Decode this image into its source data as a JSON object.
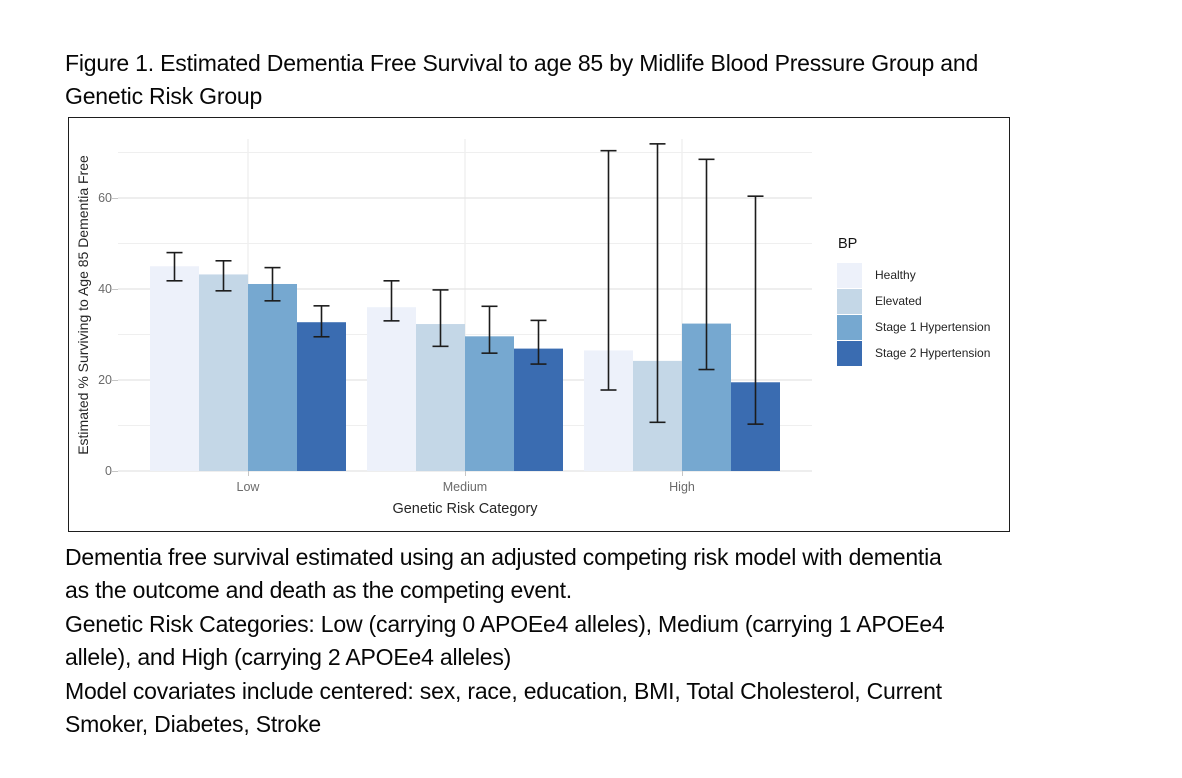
{
  "title": {
    "line1": "Figure 1. Estimated Dementia Free Survival to age 85 by Midlife Blood Pressure Group and",
    "line2": "Genetic Risk Group"
  },
  "chart_data": {
    "type": "bar",
    "categories": [
      "Low",
      "Medium",
      "High"
    ],
    "series": [
      {
        "name": "Healthy",
        "color": "#edf1fa",
        "values": [
          45.0,
          36.0,
          26.5
        ],
        "ci_low": [
          41.8,
          33.0,
          17.8
        ],
        "ci_high": [
          48.0,
          41.8,
          70.4
        ]
      },
      {
        "name": "Elevated",
        "color": "#c4d7e7",
        "values": [
          43.2,
          32.3,
          24.2
        ],
        "ci_low": [
          39.6,
          27.4,
          10.7
        ],
        "ci_high": [
          46.2,
          39.8,
          71.9
        ]
      },
      {
        "name": "Stage 1 Hypertension",
        "color": "#76a8d0",
        "values": [
          41.1,
          29.6,
          32.4
        ],
        "ci_low": [
          37.4,
          25.9,
          22.3
        ],
        "ci_high": [
          44.7,
          36.2,
          68.5
        ]
      },
      {
        "name": "Stage 2 Hypertension",
        "color": "#3a6cb1",
        "values": [
          32.7,
          26.9,
          19.5
        ],
        "ci_low": [
          29.5,
          23.5,
          10.3
        ],
        "ci_high": [
          36.3,
          33.1,
          60.4
        ]
      }
    ],
    "xlabel": "Genetic Risk Category",
    "ylabel": "Estimated % Surviving to Age 85 Dementia Free",
    "yticks": [
      0,
      20,
      40,
      60
    ],
    "ylim": [
      0,
      73
    ],
    "grid": "light horizontal gridlines every 10 units; light vertical gridline at each category center",
    "error_bars": true,
    "legend": {
      "title": "BP",
      "position": "right"
    }
  },
  "caption": {
    "lines": [
      "Dementia free survival estimated using an adjusted competing risk model with dementia",
      "as the outcome and death as the competing event.",
      "Genetic Risk Categories: Low (carrying 0 APOEe4 alleles), Medium (carrying 1 APOEe4",
      "allele), and High (carrying 2 APOEe4 alleles)",
      "Model covariates include centered: sex, race, education, BMI, Total Cholesterol, Current",
      "Smoker, Diabetes, Stroke"
    ]
  },
  "colors": {
    "figure_border": "#1e1e1e",
    "gridline_major": "#e4e4e4",
    "gridline_minor": "#efefef",
    "gridline_vertical": "#eaeaea",
    "tick_text": "#6b6b6b",
    "axis_title_text": "#262626",
    "error_bar": "#1c1c1c",
    "background": "#ffffff"
  }
}
